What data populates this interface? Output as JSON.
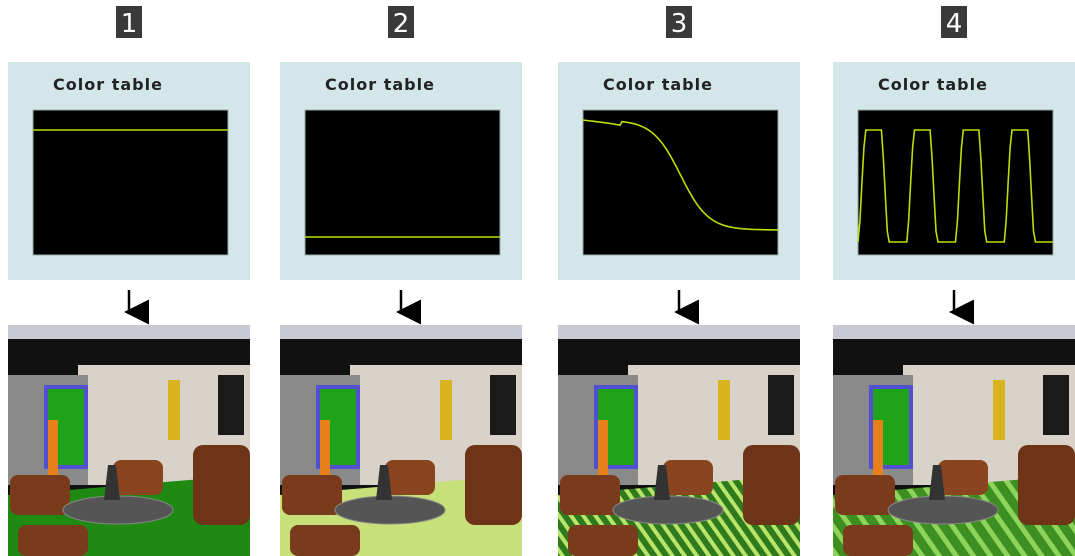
{
  "panels": [
    {
      "number": "1",
      "title": "Color table"
    },
    {
      "number": "2",
      "title": "Color table"
    },
    {
      "number": "3",
      "title": "Color table"
    },
    {
      "number": "4",
      "title": "Color table"
    }
  ]
}
